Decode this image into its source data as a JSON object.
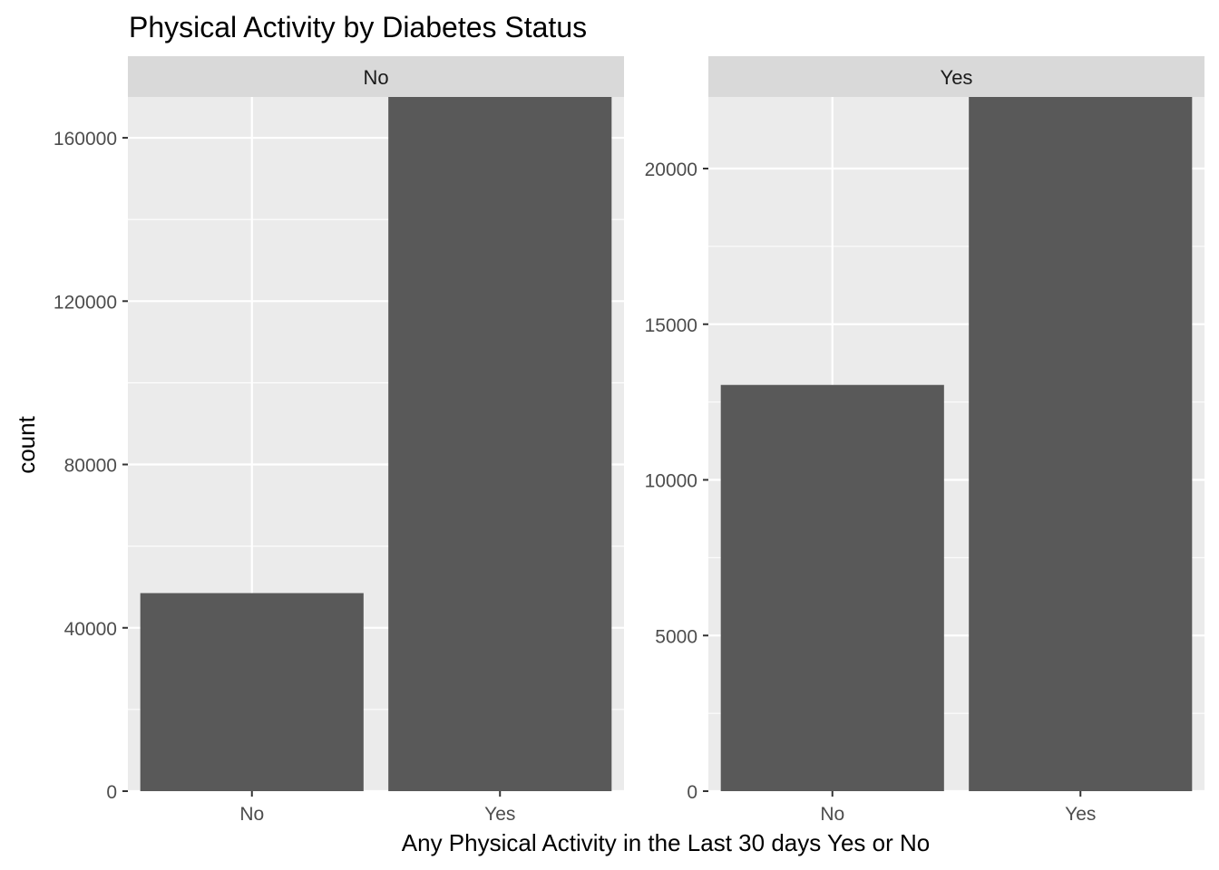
{
  "chart_data": {
    "type": "bar",
    "title": "Physical Activity by Diabetes Status",
    "xlabel": "Any Physical Activity in the Last 30 days Yes or No",
    "ylabel": "count",
    "grid": true,
    "facet_variable": "Diabetes Status",
    "categories": [
      "No",
      "Yes"
    ],
    "panels": [
      {
        "strip_label": "No",
        "values": [
          48500,
          170000
        ],
        "ylim": [
          0,
          170000
        ],
        "yticks": [
          0,
          40000,
          80000,
          120000,
          160000
        ],
        "ytick_labels": [
          "0",
          "40000",
          "80000",
          "120000",
          "160000"
        ]
      },
      {
        "strip_label": "Yes",
        "values": [
          13050,
          22300
        ],
        "ylim": [
          0,
          22300
        ],
        "yticks": [
          0,
          5000,
          10000,
          15000,
          20000
        ],
        "ytick_labels": [
          "0",
          "5000",
          "10000",
          "15000",
          "20000"
        ]
      }
    ],
    "colors": {
      "bar": "#595959",
      "panel_background": "#ebebeb",
      "strip_background": "#d9d9d9",
      "grid": "#ffffff"
    }
  }
}
